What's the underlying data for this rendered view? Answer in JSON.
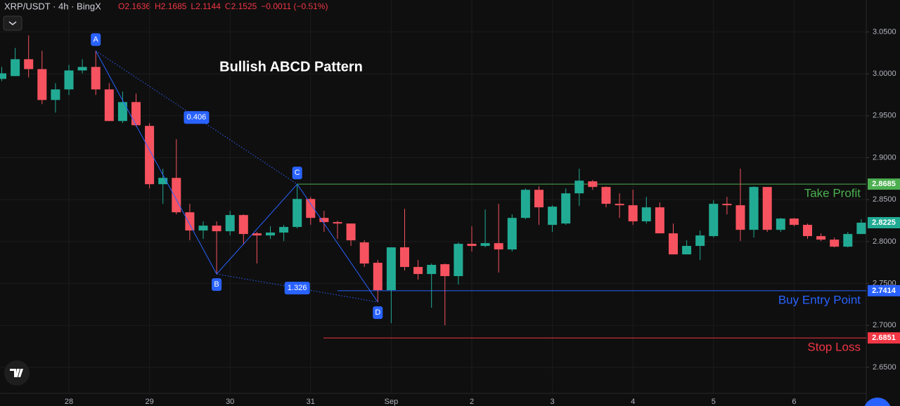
{
  "header": {
    "symbol": "XRP/USDT · 4h · BingX",
    "ohlc": [
      "O2.1636",
      "H2.1685",
      "L2.1144",
      "C2.1525",
      "−0.0011 (−0.51%)"
    ]
  },
  "chart_data": {
    "type": "candlestick",
    "title": "Bullish ABCD Pattern",
    "categories": [
      null,
      null,
      null,
      null,
      null,
      "28",
      null,
      null,
      null,
      null,
      null,
      "29",
      null,
      null,
      null,
      null,
      null,
      "30",
      null,
      null,
      null,
      null,
      null,
      "31",
      null,
      null,
      null,
      null,
      null,
      "Sep",
      null,
      null,
      null,
      null,
      null,
      "2",
      null,
      null,
      null,
      null,
      null,
      "3",
      null,
      null,
      null,
      null,
      null,
      "4",
      null,
      null,
      null,
      null,
      null,
      "5",
      null,
      null,
      null,
      null,
      null,
      "6",
      null,
      null,
      null,
      null,
      null
    ],
    "open": [
      2.9939,
      2.9973,
      3.0174,
      3.0056,
      2.9688,
      2.9814,
      3.004,
      3.0082,
      2.9814,
      2.9437,
      2.9663,
      2.9379,
      2.8684,
      2.8759,
      2.8349,
      2.8132,
      2.819,
      2.8123,
      2.8316,
      2.8098,
      2.8073,
      2.8107,
      2.8174,
      2.8508,
      2.8282,
      2.8232,
      2.8215,
      2.799,
      2.7747,
      2.7421,
      2.7931,
      2.7697,
      2.7613,
      2.773,
      2.7588,
      2.7973,
      2.7948,
      2.7981,
      2.7906,
      2.8282,
      2.8617,
      2.8199,
      2.8215,
      2.8575,
      2.8718,
      2.8651,
      2.845,
      2.8433,
      2.8241,
      2.8408,
      2.8098,
      2.7847,
      2.7948,
      2.8065,
      2.845,
      2.8433,
      2.814,
      2.8651,
      2.814,
      2.8274,
      2.8199,
      2.8065,
      2.8023,
      2.7939,
      2.809
    ],
    "high": [
      3.0082,
      3.0308,
      3.0458,
      3.0274,
      2.9889,
      3.0107,
      3.0174,
      3.0274,
      2.9889,
      2.9789,
      2.9764,
      2.9412,
      2.8868,
      2.922,
      2.845,
      2.8241,
      2.8241,
      2.8366,
      2.8324,
      2.8115,
      2.8182,
      2.8199,
      2.8684,
      2.8533,
      2.8366,
      2.8249,
      2.8215,
      2.8015,
      2.778,
      2.7931,
      2.8391,
      2.778,
      2.7738,
      2.7738,
      2.799,
      2.8182,
      2.8383,
      2.845,
      2.8324,
      2.8634,
      2.8659,
      2.8433,
      2.8634,
      2.8868,
      2.8734,
      2.8659,
      2.8575,
      2.8617,
      2.8533,
      2.8466,
      2.8215,
      2.8015,
      2.8132,
      2.8492,
      2.8533,
      2.8868,
      2.8659,
      2.8651,
      2.8282,
      2.8282,
      2.8215,
      2.8098,
      2.8048,
      2.8115,
      2.8266
    ],
    "low": [
      2.9914,
      2.9973,
      2.9956,
      2.9638,
      2.9538,
      2.9747,
      3.0006,
      2.9747,
      2.9437,
      2.9412,
      2.937,
      2.8634,
      2.845,
      2.8324,
      2.8015,
      2.8031,
      2.7613,
      2.8073,
      2.7964,
      2.7738,
      2.8031,
      2.8006,
      2.8157,
      2.8199,
      2.8115,
      2.8031,
      2.7948,
      2.7697,
      2.7278,
      2.7027,
      2.7655,
      2.7546,
      2.7211,
      2.7002,
      2.7487,
      2.7881,
      2.7931,
      2.763,
      2.7881,
      2.8266,
      2.8199,
      2.8115,
      2.8199,
      2.8425,
      2.8617,
      2.8408,
      2.8282,
      2.8199,
      2.8215,
      2.8098,
      2.7847,
      2.7847,
      2.778,
      2.8048,
      2.8324,
      2.8006,
      2.8048,
      2.8115,
      2.8115,
      2.8182,
      2.8031,
      2.8006,
      2.7931,
      2.7931,
      2.809
    ],
    "close": [
      3.0006,
      3.0174,
      3.0056,
      2.9688,
      2.9814,
      3.004,
      3.0082,
      2.9814,
      2.9437,
      2.9663,
      2.9387,
      2.8684,
      2.8759,
      2.8349,
      2.8132,
      2.819,
      2.8123,
      2.8316,
      2.809,
      2.8073,
      2.8107,
      2.8174,
      2.8508,
      2.8282,
      2.8232,
      2.8215,
      2.8015,
      2.7738,
      2.7421,
      2.7931,
      2.7697,
      2.7613,
      2.7722,
      2.7588,
      2.7973,
      2.7948,
      2.7981,
      2.7906,
      2.8282,
      2.8617,
      2.8408,
      2.8416,
      2.8575,
      2.8726,
      2.8651,
      2.845,
      2.8433,
      2.8241,
      2.8408,
      2.8098,
      2.7847,
      2.7948,
      2.8073,
      2.845,
      2.8433,
      2.814,
      2.8651,
      2.814,
      2.8274,
      2.8199,
      2.8065,
      2.8023,
      2.7939,
      2.809,
      2.8225
    ],
    "up_color": "#22ab94",
    "down_color": "#f7525f",
    "ylim": [
      2.619,
      3.088
    ],
    "yticks": [
      {
        "value": 3.05,
        "label": "3.0500"
      },
      {
        "value": 3.0,
        "label": "3.0000"
      },
      {
        "value": 2.95,
        "label": "2.9500"
      },
      {
        "value": 2.9,
        "label": "2.9000"
      },
      {
        "value": 2.85,
        "label": "2.8500"
      },
      {
        "value": 2.8,
        "label": "2.8000"
      },
      {
        "value": 2.75,
        "label": "2.7500"
      },
      {
        "value": 2.7,
        "label": "2.7000"
      },
      {
        "value": 2.65,
        "label": "2.6500"
      }
    ],
    "grid": true,
    "pattern": {
      "color": "#2962ff",
      "points": [
        {
          "label": "A",
          "value": 3.0274
        },
        {
          "label": "B",
          "value": 2.7613
        },
        {
          "label": "C",
          "value": 2.8684
        },
        {
          "label": "D",
          "value": 2.7278
        }
      ],
      "ratios": [
        0.406,
        1.326
      ]
    },
    "levels": [
      {
        "name": "Take Profit",
        "value": 2.8685,
        "color": "#4caf50"
      },
      {
        "name": "Buy Entry Point",
        "value": 2.7414,
        "color": "#2962ff"
      },
      {
        "name": "Stop Loss",
        "value": 2.6851,
        "color": "#f23645"
      }
    ],
    "last_price": 2.8225
  }
}
